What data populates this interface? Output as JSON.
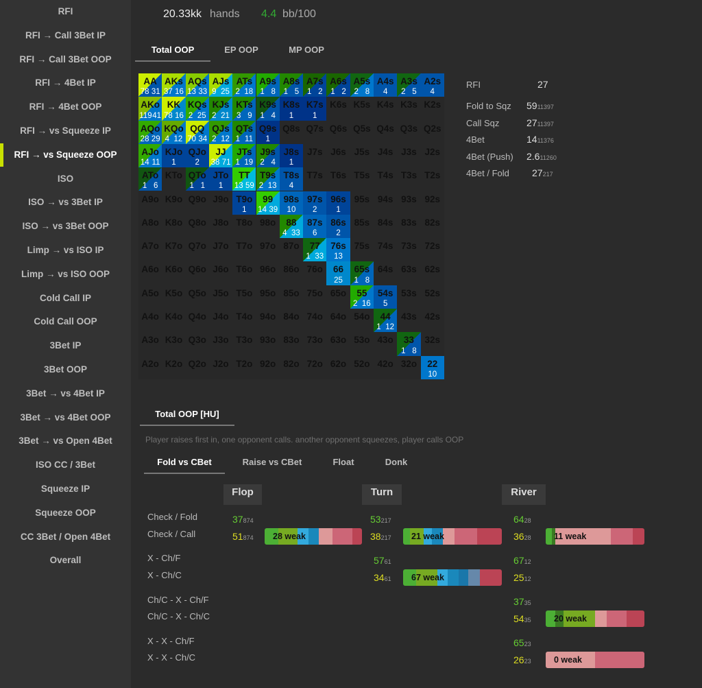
{
  "sidebar": {
    "items": [
      {
        "label": "RFI"
      },
      {
        "label": "RFI → Call 3Bet IP"
      },
      {
        "label": "RFI → Call 3Bet OOP"
      },
      {
        "label": "RFI → 4Bet IP"
      },
      {
        "label": "RFI → 4Bet OOP"
      },
      {
        "label": "RFI → vs Squeeze IP"
      },
      {
        "label": "RFI → vs Squeeze OOP",
        "active": true
      },
      {
        "label": "ISO"
      },
      {
        "label": "ISO → vs 3Bet IP"
      },
      {
        "label": "ISO → vs 3Bet OOP"
      },
      {
        "label": "Limp → vs ISO IP"
      },
      {
        "label": "Limp → vs ISO OOP"
      },
      {
        "label": "Cold Call IP"
      },
      {
        "label": "Cold Call OOP"
      },
      {
        "label": "3Bet IP"
      },
      {
        "label": "3Bet OOP"
      },
      {
        "label": "3Bet → vs 4Bet IP"
      },
      {
        "label": "3Bet → vs 4Bet OOP"
      },
      {
        "label": "3Bet → vs Open 4Bet"
      },
      {
        "label": "ISO CC / 3Bet"
      },
      {
        "label": "Squeeze IP"
      },
      {
        "label": "Squeeze OOP"
      },
      {
        "label": "CC 3Bet / Open 4Bet"
      },
      {
        "label": "Overall"
      }
    ]
  },
  "header": {
    "hands_value": "20.33kk",
    "hands_label": "hands",
    "winrate_value": "4.4",
    "winrate_label": "bb/100"
  },
  "position_tabs": [
    "Total OOP",
    "EP OOP",
    "MP OOP"
  ],
  "grid": {
    "ranks": [
      "A",
      "K",
      "Q",
      "J",
      "T",
      "9",
      "8",
      "7",
      "6",
      "5",
      "4",
      "3",
      "2"
    ],
    "cells": {
      "0,0": {
        "bg": "#0055aa",
        "c2": "#ccee00",
        "v": [
          "78",
          "31"
        ]
      },
      "0,1": {
        "bg": "#0077cc",
        "c2": "#aadd00",
        "v": [
          "37",
          "16"
        ]
      },
      "0,2": {
        "bg": "#0077cc",
        "c2": "#88cc00",
        "v": [
          "13",
          "33"
        ]
      },
      "0,3": {
        "bg": "#00aadd",
        "c2": "#aadd00",
        "v": [
          "9",
          "25"
        ]
      },
      "0,4": {
        "bg": "#0077cc",
        "c2": "#339900",
        "v": [
          "2",
          "18"
        ]
      },
      "0,5": {
        "bg": "#0066bb",
        "c2": "#22aa00",
        "v": [
          "1",
          "8"
        ]
      },
      "0,6": {
        "bg": "#0055aa",
        "c2": "#228800",
        "v": [
          "1",
          "5"
        ]
      },
      "0,7": {
        "bg": "#004499",
        "c2": "#1a6600",
        "v": [
          "1",
          "2"
        ]
      },
      "0,8": {
        "bg": "#004499",
        "c2": "#1a6600",
        "v": [
          "1",
          "2"
        ]
      },
      "0,9": {
        "bg": "#0077cc",
        "c2": "#116611",
        "v": [
          "2",
          "8"
        ]
      },
      "0,10": {
        "bg": "#0055aa",
        "v": [
          "4"
        ]
      },
      "0,11": {
        "bg": "#0055aa",
        "c2": "#116611",
        "v": [
          "2",
          "5"
        ]
      },
      "0,12": {
        "bg": "#0055aa",
        "v": [
          "4"
        ]
      },
      "1,0": {
        "bg": "#0077cc",
        "c2": "#88bb00",
        "v": [
          "119",
          "41"
        ]
      },
      "1,1": {
        "bg": "#0088cc",
        "c2": "#ccee00",
        "v": [
          "78",
          "16"
        ]
      },
      "1,2": {
        "bg": "#0077cc",
        "c2": "#33aa00",
        "v": [
          "2",
          "25"
        ]
      },
      "1,3": {
        "bg": "#0088cc",
        "c2": "#228800",
        "v": [
          "2",
          "21"
        ]
      },
      "1,4": {
        "bg": "#0066bb",
        "c2": "#228800",
        "v": [
          "3",
          "9"
        ]
      },
      "1,5": {
        "bg": "#0055aa",
        "c2": "#115511",
        "v": [
          "1",
          "4"
        ]
      },
      "1,6": {
        "bg": "#003388",
        "v": [
          "1"
        ]
      },
      "1,7": {
        "bg": "#003388",
        "v": [
          "1"
        ]
      },
      "2,0": {
        "bg": "#0066bb",
        "c2": "#33aa00",
        "v": [
          "28",
          "29"
        ]
      },
      "2,1": {
        "bg": "#0077cc",
        "c2": "#66aa00",
        "v": [
          "4",
          "12"
        ]
      },
      "2,2": {
        "bg": "#0077cc",
        "c2": "#ccee00",
        "v": [
          "70",
          "34"
        ]
      },
      "2,3": {
        "bg": "#0077cc",
        "c2": "#339900",
        "v": [
          "2",
          "12"
        ]
      },
      "2,4": {
        "bg": "#0066bb",
        "c2": "#228800",
        "v": [
          "1",
          "11"
        ]
      },
      "2,5": {
        "bg": "#003388",
        "v": [
          "1"
        ]
      },
      "3,0": {
        "bg": "#0077cc",
        "c2": "#33aa00",
        "v": [
          "14",
          "11"
        ]
      },
      "3,1": {
        "bg": "#004499",
        "v": [
          "1"
        ]
      },
      "3,2": {
        "bg": "#004499",
        "v": [
          "2"
        ]
      },
      "3,3": {
        "bg": "#00aadd",
        "c2": "#ccee00",
        "v": [
          "38",
          "71"
        ]
      },
      "3,4": {
        "bg": "#0066bb",
        "c2": "#22aa00",
        "v": [
          "1",
          "19"
        ]
      },
      "3,5": {
        "bg": "#0055aa",
        "c2": "#228800",
        "v": [
          "2",
          "4"
        ]
      },
      "3,6": {
        "bg": "#003388",
        "v": [
          "1"
        ]
      },
      "4,0": {
        "bg": "#0055aa",
        "c2": "#115511",
        "v": [
          "1",
          "6"
        ]
      },
      "4,2": {
        "bg": "#004499",
        "c2": "#115511",
        "v": [
          "1",
          "1"
        ]
      },
      "4,3": {
        "bg": "#004499",
        "v": [
          "1"
        ]
      },
      "4,4": {
        "bg": "#00bbdd",
        "c2": "#33cc00",
        "v": [
          "13",
          "59"
        ]
      },
      "4,5": {
        "bg": "#0077cc",
        "c2": "#228800",
        "v": [
          "2",
          "13"
        ]
      },
      "4,6": {
        "bg": "#0055aa",
        "v": [
          "4"
        ]
      },
      "5,4": {
        "bg": "#004499",
        "v": [
          "1"
        ]
      },
      "5,5": {
        "bg": "#00aadd",
        "c2": "#33cc00",
        "v": [
          "14",
          "39"
        ]
      },
      "5,6": {
        "bg": "#0066bb",
        "v": [
          "10"
        ]
      },
      "5,7": {
        "bg": "#0055aa",
        "v": [
          "2"
        ]
      },
      "5,8": {
        "bg": "#004499",
        "v": [
          "1"
        ]
      },
      "6,6": {
        "bg": "#00aadd",
        "c2": "#228800",
        "v": [
          "4",
          "33"
        ]
      },
      "6,7": {
        "bg": "#0066bb",
        "v": [
          "6"
        ]
      },
      "6,8": {
        "bg": "#0055aa",
        "v": [
          "2"
        ]
      },
      "7,7": {
        "bg": "#00aadd",
        "c2": "#116611",
        "v": [
          "1",
          "33"
        ]
      },
      "7,8": {
        "bg": "#0077cc",
        "v": [
          "13"
        ]
      },
      "8,8": {
        "bg": "#0088cc",
        "v": [
          "25"
        ]
      },
      "8,9": {
        "bg": "#0066bb",
        "c2": "#116611",
        "v": [
          "1",
          "8"
        ]
      },
      "9,9": {
        "bg": "#0077cc",
        "c2": "#22aa00",
        "v": [
          "2",
          "16"
        ]
      },
      "9,10": {
        "bg": "#0055aa",
        "v": [
          "5"
        ]
      },
      "10,10": {
        "bg": "#0066bb",
        "c2": "#116611",
        "v": [
          "1",
          "12"
        ]
      },
      "11,11": {
        "bg": "#0055aa",
        "c2": "#116611",
        "v": [
          "1",
          "8"
        ]
      },
      "12,12": {
        "bg": "#0077cc",
        "v": [
          "10"
        ]
      }
    }
  },
  "right_stats": [
    {
      "label": "RFI",
      "value": "27",
      "sub": ""
    },
    {
      "label": "Fold to Sqz",
      "value": "59",
      "sub": "11397"
    },
    {
      "label": "Call Sqz",
      "value": "27",
      "sub": "11397"
    },
    {
      "label": "4Bet",
      "value": "14",
      "sub": "11376"
    },
    {
      "label": "4Bet (Push)",
      "value": "2.6",
      "sub": "11260"
    },
    {
      "label": "4Bet / Fold",
      "value": "27",
      "sub": "217"
    }
  ],
  "section_tab": "Total OOP [HU]",
  "description": "Player raises first in, one opponent calls. another opponent squeezes, player calls OOP",
  "postflop_tabs": [
    "Fold vs CBet",
    "Raise vs CBet",
    "Float",
    "Donk"
  ],
  "streets": [
    "Flop",
    "Turn",
    "River"
  ],
  "rows": [
    {
      "a": "Check / Fold",
      "b": "Check / Call"
    },
    {
      "a": "X - Ch/F",
      "b": "X - Ch/C"
    },
    {
      "a": "Ch/C - X - Ch/F",
      "b": "Ch/C - X - Ch/C"
    },
    {
      "a": "X - X - Ch/F",
      "b": "X - X - Ch/C"
    }
  ],
  "flop": {
    "r0": {
      "fold": "37",
      "fold_n": "874",
      "call": "51",
      "call_n": "874",
      "bar": "28 weak"
    }
  },
  "turn": {
    "r0": {
      "fold": "53",
      "fold_n": "217",
      "call": "38",
      "call_n": "217",
      "bar": "21 weak"
    },
    "r1": {
      "fold": "57",
      "fold_n": "61",
      "call": "34",
      "call_n": "61",
      "bar": "67 weak"
    }
  },
  "river": {
    "r0": {
      "fold": "64",
      "fold_n": "28",
      "call": "36",
      "call_n": "28",
      "bar": "11 weak"
    },
    "r1": {
      "fold": "67",
      "fold_n": "12",
      "call": "25",
      "call_n": "12"
    },
    "r2": {
      "fold": "37",
      "fold_n": "35",
      "call": "54",
      "call_n": "35",
      "bar": "20 weak"
    },
    "r3": {
      "fold": "65",
      "fold_n": "23",
      "call": "26",
      "call_n": "23",
      "bar": "0 weak"
    }
  },
  "colors": {
    "accent": "#c8e000",
    "green_text": "#66cc33",
    "yellow_text": "#dddd22",
    "panel": "#333333",
    "background": "#2b2b2b"
  }
}
